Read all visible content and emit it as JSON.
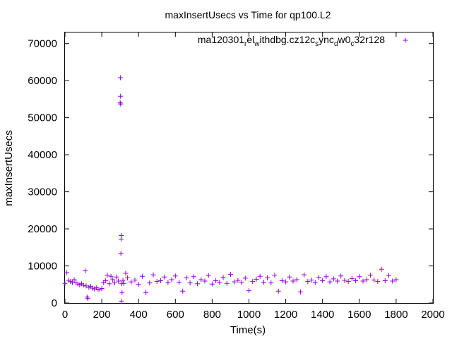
{
  "chart_data": {
    "type": "scatter",
    "title": "maxInsertUsecs vs Time for qp100.L2",
    "xlabel": "Time(s)",
    "ylabel": "maxInsertUsecs",
    "xlim": [
      0,
      2000
    ],
    "ylim": [
      0,
      73000
    ],
    "x_ticks": [
      0,
      200,
      400,
      600,
      800,
      1000,
      1200,
      1400,
      1600,
      1800,
      2000
    ],
    "y_ticks": [
      0,
      10000,
      20000,
      30000,
      40000,
      50000,
      60000,
      70000
    ],
    "grid": false,
    "legend_position": "top-right",
    "marker": "+",
    "color": "#9400d3",
    "series": [
      {
        "name": "ma120301_rel_withdbg.cz12c_sync_dw0_c32r128",
        "x": [
          0,
          10,
          20,
          30,
          40,
          50,
          60,
          70,
          80,
          90,
          100,
          110,
          115,
          120,
          125,
          130,
          140,
          150,
          160,
          170,
          180,
          190,
          200,
          210,
          220,
          230,
          240,
          250,
          260,
          270,
          280,
          290,
          300,
          301,
          302,
          303,
          304,
          305,
          306,
          307,
          308,
          310,
          315,
          320,
          330,
          340,
          360,
          380,
          400,
          420,
          440,
          460,
          480,
          500,
          520,
          540,
          560,
          580,
          600,
          620,
          640,
          660,
          680,
          700,
          720,
          740,
          760,
          780,
          800,
          820,
          840,
          860,
          880,
          900,
          920,
          940,
          960,
          980,
          1000,
          1020,
          1040,
          1060,
          1080,
          1100,
          1120,
          1140,
          1160,
          1180,
          1200,
          1220,
          1240,
          1260,
          1280,
          1300,
          1320,
          1340,
          1360,
          1380,
          1400,
          1420,
          1440,
          1460,
          1480,
          1500,
          1520,
          1540,
          1560,
          1580,
          1600,
          1620,
          1640,
          1660,
          1680,
          1700,
          1720,
          1740,
          1760,
          1780,
          1800
        ],
        "y": [
          5300,
          8200,
          6100,
          5800,
          5500,
          6300,
          5600,
          5100,
          4900,
          5200,
          4800,
          8700,
          4600,
          1600,
          1200,
          4200,
          4500,
          4000,
          3800,
          4100,
          3700,
          3600,
          3900,
          5500,
          6000,
          7500,
          5200,
          7200,
          6300,
          5400,
          7000,
          5900,
          54000,
          60800,
          55800,
          53700,
          13400,
          17200,
          18200,
          500,
          5200,
          2800,
          6100,
          5300,
          8000,
          6800,
          5700,
          6200,
          5000,
          7200,
          2800,
          5400,
          7600,
          5800,
          6000,
          7000,
          5500,
          6300,
          7300,
          5600,
          3200,
          6800,
          5400,
          7100,
          5200,
          6300,
          5900,
          7400,
          5100,
          6000,
          5600,
          6900,
          5300,
          7700,
          5700,
          6100,
          5500,
          6700,
          3300,
          5800,
          6400,
          7200,
          5600,
          6800,
          5400,
          7500,
          3200,
          6000,
          5700,
          7000,
          5900,
          6300,
          3000,
          7600,
          5800,
          6200,
          5500,
          6900,
          6000,
          7100,
          5700,
          6500,
          5900,
          7300,
          6100,
          5800,
          6600,
          6000,
          7100,
          5900,
          6300,
          7500,
          6200,
          5800,
          9100,
          6000,
          7400,
          5900,
          6300
        ]
      }
    ]
  }
}
